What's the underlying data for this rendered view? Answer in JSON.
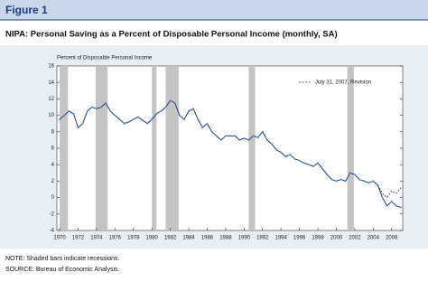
{
  "header": "Figure 1",
  "chart_data": {
    "type": "line",
    "title": "NIPA: Personal Saving as a Percent of Disposable Personal Income (monthly, SA)",
    "ylabel": "Percent of Disposable Personal Income",
    "xlim": [
      1969.7,
      2007.2
    ],
    "ylim": [
      -4,
      16
    ],
    "xticks": [
      1970,
      1972,
      1974,
      1976,
      1978,
      1980,
      1982,
      1984,
      1986,
      1988,
      1990,
      1992,
      1994,
      1996,
      1998,
      2000,
      2002,
      2004,
      2006
    ],
    "yticks": [
      -4,
      -2,
      0,
      2,
      4,
      6,
      8,
      10,
      12,
      14,
      16
    ],
    "recessions": [
      [
        1970.0,
        1970.9
      ],
      [
        1973.9,
        1975.2
      ],
      [
        1980.0,
        1980.5
      ],
      [
        1981.5,
        1982.9
      ],
      [
        1990.5,
        1991.2
      ],
      [
        2001.2,
        2001.9
      ]
    ],
    "recession_color": "#c4c4c4",
    "legend": "upper right",
    "series": [
      {
        "color": "#1f3f7a",
        "dashed": false,
        "x": [
          1970,
          1970.5,
          1971,
          1971.5,
          1972,
          1972.5,
          1973,
          1973.5,
          1974,
          1974.5,
          1975,
          1975.5,
          1976,
          1976.5,
          1977,
          1977.5,
          1978,
          1978.5,
          1979,
          1979.5,
          1980,
          1980.5,
          1981,
          1981.5,
          1982,
          1982.5,
          1983,
          1983.5,
          1984,
          1984.5,
          1985,
          1985.5,
          1986,
          1986.5,
          1987,
          1987.5,
          1988,
          1988.5,
          1989,
          1989.5,
          1990,
          1990.5,
          1991,
          1991.5,
          1992,
          1992.5,
          1993,
          1993.5,
          1994,
          1994.5,
          1995,
          1995.5,
          1996,
          1996.5,
          1997,
          1997.5,
          1998,
          1998.5,
          1999,
          1999.5,
          2000,
          2000.5,
          2001,
          2001.5,
          2002,
          2002.5,
          2003,
          2003.5,
          2004,
          2004.5,
          2005,
          2005.5,
          2006,
          2006.5,
          2007
        ],
        "values": [
          9.5,
          10,
          10.5,
          10.2,
          8.5,
          9.0,
          10.5,
          11.0,
          10.8,
          11.0,
          11.5,
          10.5,
          10.0,
          9.5,
          9.0,
          9.2,
          9.5,
          9.8,
          9.4,
          9.0,
          9.5,
          10.2,
          10.5,
          11.0,
          11.8,
          11.5,
          10.0,
          9.5,
          10.5,
          10.8,
          9.5,
          8.5,
          9.0,
          8.0,
          7.5,
          7.0,
          7.5,
          7.5,
          7.5,
          7.0,
          7.2,
          7.0,
          7.5,
          7.3,
          8.0,
          7.0,
          6.5,
          5.8,
          5.5,
          5.0,
          5.2,
          4.7,
          4.5,
          4.2,
          4.0,
          3.8,
          4.2,
          3.5,
          2.8,
          2.2,
          2.0,
          2.2,
          2.0,
          3.0,
          2.8,
          2.2,
          2.0,
          1.8,
          2.0,
          1.5,
          0.0,
          -1.0,
          -0.5,
          -1.0,
          -1.2
        ]
      },
      {
        "name": "July 31, 2007, Revision",
        "color": "#333333",
        "dashed": true,
        "x": [
          2004.5,
          2005,
          2005.5,
          2006,
          2006.5,
          2007
        ],
        "values": [
          1.5,
          0.5,
          0.0,
          0.8,
          0.5,
          1.2
        ]
      }
    ]
  },
  "notes": [
    "NOTE: Shaded bars indicate recessions.",
    "SOURCE: Bureau of Economic Analysis."
  ]
}
